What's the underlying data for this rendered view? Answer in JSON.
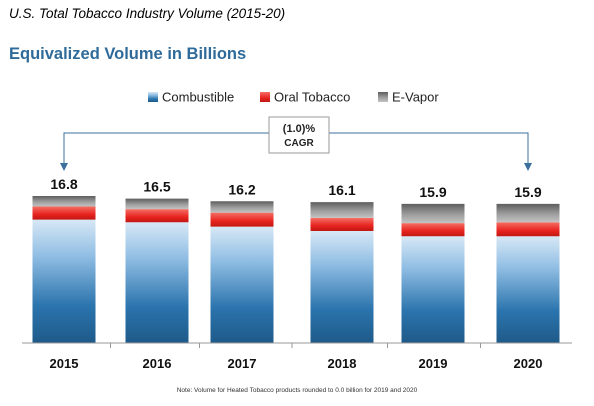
{
  "title": "U.S. Total Tobacco Industry Volume (2015-20)",
  "subtitle": "Equivalized Volume in Billions",
  "note": "Note: Volume for Heated Tobacco products rounded to 0.0 billion for 2019 and 2020",
  "cagr_label": {
    "value": "(1.0)%",
    "name": "CAGR"
  },
  "colors": {
    "combustible": "#2b74ad",
    "oral_tobacco": "#e8231f",
    "e_vapor": "#8c8c8c"
  },
  "chart_data": {
    "type": "bar",
    "stacked": true,
    "title": "U.S. Total Tobacco Industry Volume (2015-20)",
    "subtitle": "Equivalized Volume in Billions",
    "categories": [
      "2015",
      "2016",
      "2017",
      "2018",
      "2019",
      "2020"
    ],
    "totals": [
      16.8,
      16.5,
      16.2,
      16.1,
      15.9,
      15.9
    ],
    "total_labels": [
      "16.8",
      "16.5",
      "16.2",
      "16.1",
      "15.9",
      "15.9"
    ],
    "series": [
      {
        "name": "Combustible",
        "values": [
          14.1,
          13.8,
          13.3,
          12.8,
          12.2,
          12.2
        ]
      },
      {
        "name": "Oral Tobacco",
        "values": [
          1.5,
          1.5,
          1.6,
          1.5,
          1.5,
          1.6
        ]
      },
      {
        "name": "E-Vapor",
        "values": [
          1.2,
          1.2,
          1.3,
          1.8,
          2.2,
          2.1
        ]
      }
    ],
    "legend_position": "top",
    "annotation": {
      "text": "(1.0)% CAGR",
      "from": "2015",
      "to": "2020"
    },
    "grid": false,
    "ylim": [
      0,
      16.8
    ]
  }
}
